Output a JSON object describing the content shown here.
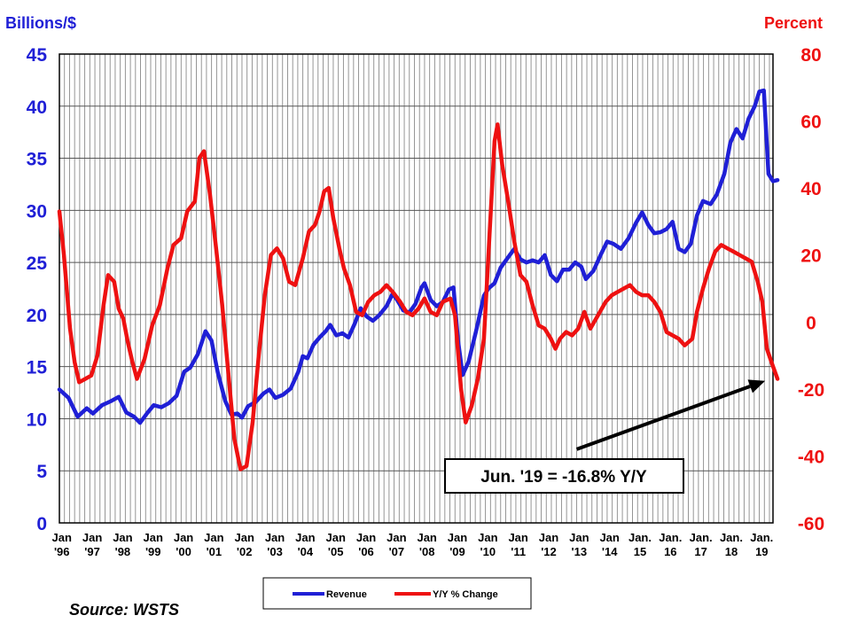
{
  "chart_data": {
    "type": "line",
    "left_axis_title": "Billions/$",
    "right_axis_title": "Percent",
    "left_ylim": [
      0,
      45
    ],
    "left_ticks": [
      "0",
      "5",
      "10",
      "15",
      "20",
      "25",
      "30",
      "35",
      "40",
      "45"
    ],
    "right_ylim": [
      -60,
      80
    ],
    "right_ticks": [
      "-60",
      "-40",
      "-20",
      "0",
      "20",
      "40",
      "60",
      "80"
    ],
    "left_color": "#1f1fd6",
    "right_color": "#ee1111",
    "x_range": [
      1996.0,
      2019.45
    ],
    "x_tick_labels": [
      [
        "Jan",
        "'96"
      ],
      [
        "Jan",
        "'97"
      ],
      [
        "Jan",
        "'98"
      ],
      [
        "Jan",
        "'99"
      ],
      [
        "Jan",
        "'00"
      ],
      [
        "Jan",
        "'01"
      ],
      [
        "Jan",
        "'02"
      ],
      [
        "Jan",
        "'03"
      ],
      [
        "Jan",
        "'04"
      ],
      [
        "Jan",
        "'05"
      ],
      [
        "Jan",
        "'06"
      ],
      [
        "Jan",
        "'07"
      ],
      [
        "Jan",
        "'08"
      ],
      [
        "Jan",
        "'09"
      ],
      [
        "Jan",
        "'10"
      ],
      [
        "Jan",
        "'11"
      ],
      [
        "Jan",
        "'12"
      ],
      [
        "Jan",
        "'13"
      ],
      [
        "Jan",
        "'14"
      ],
      [
        "Jan.",
        "15"
      ],
      [
        "Jan.",
        "16"
      ],
      [
        "Jan.",
        "17"
      ],
      [
        "Jan.",
        "18"
      ],
      [
        "Jan.",
        "19"
      ]
    ],
    "grid": true,
    "legend_position": "bottom-center",
    "series": [
      {
        "name": "Revenue",
        "axis": "left",
        "color": "#1f1fd6",
        "points": [
          [
            1996.0,
            12.8
          ],
          [
            1996.3,
            12.0
          ],
          [
            1996.6,
            10.2
          ],
          [
            1996.9,
            11.0
          ],
          [
            1997.1,
            10.5
          ],
          [
            1997.4,
            11.3
          ],
          [
            1997.7,
            11.7
          ],
          [
            1997.95,
            12.1
          ],
          [
            1998.2,
            10.6
          ],
          [
            1998.45,
            10.2
          ],
          [
            1998.65,
            9.6
          ],
          [
            1998.9,
            10.6
          ],
          [
            1999.1,
            11.3
          ],
          [
            1999.35,
            11.1
          ],
          [
            1999.6,
            11.5
          ],
          [
            1999.85,
            12.2
          ],
          [
            2000.1,
            14.5
          ],
          [
            2000.3,
            14.9
          ],
          [
            2000.55,
            16.2
          ],
          [
            2000.8,
            18.4
          ],
          [
            2001.0,
            17.5
          ],
          [
            2001.2,
            14.5
          ],
          [
            2001.45,
            11.7
          ],
          [
            2001.65,
            10.4
          ],
          [
            2001.85,
            10.5
          ],
          [
            2002.0,
            10.1
          ],
          [
            2002.2,
            11.2
          ],
          [
            2002.45,
            11.6
          ],
          [
            2002.7,
            12.4
          ],
          [
            2002.9,
            12.8
          ],
          [
            2003.1,
            12.0
          ],
          [
            2003.35,
            12.3
          ],
          [
            2003.6,
            12.9
          ],
          [
            2003.85,
            14.5
          ],
          [
            2004.0,
            16.0
          ],
          [
            2004.15,
            15.8
          ],
          [
            2004.35,
            17.1
          ],
          [
            2004.55,
            17.8
          ],
          [
            2004.75,
            18.4
          ],
          [
            2004.9,
            19.0
          ],
          [
            2005.1,
            18.0
          ],
          [
            2005.3,
            18.2
          ],
          [
            2005.5,
            17.8
          ],
          [
            2005.7,
            19.1
          ],
          [
            2005.9,
            20.6
          ],
          [
            2006.1,
            19.8
          ],
          [
            2006.3,
            19.4
          ],
          [
            2006.5,
            19.9
          ],
          [
            2006.75,
            20.8
          ],
          [
            2006.95,
            22.0
          ],
          [
            2007.1,
            21.4
          ],
          [
            2007.3,
            20.4
          ],
          [
            2007.5,
            20.2
          ],
          [
            2007.7,
            21.0
          ],
          [
            2007.9,
            22.6
          ],
          [
            2008.0,
            23.0
          ],
          [
            2008.2,
            21.4
          ],
          [
            2008.4,
            20.8
          ],
          [
            2008.6,
            21.2
          ],
          [
            2008.8,
            22.4
          ],
          [
            2008.95,
            22.6
          ],
          [
            2009.1,
            17.5
          ],
          [
            2009.25,
            14.2
          ],
          [
            2009.45,
            15.5
          ],
          [
            2009.7,
            18.5
          ],
          [
            2009.95,
            21.8
          ],
          [
            2010.1,
            22.5
          ],
          [
            2010.3,
            23.0
          ],
          [
            2010.5,
            24.5
          ],
          [
            2010.75,
            25.5
          ],
          [
            2010.95,
            26.3
          ],
          [
            2011.15,
            25.3
          ],
          [
            2011.35,
            25.0
          ],
          [
            2011.55,
            25.2
          ],
          [
            2011.75,
            25.0
          ],
          [
            2011.95,
            25.7
          ],
          [
            2012.15,
            23.8
          ],
          [
            2012.35,
            23.2
          ],
          [
            2012.55,
            24.3
          ],
          [
            2012.75,
            24.3
          ],
          [
            2012.95,
            25.0
          ],
          [
            2013.15,
            24.6
          ],
          [
            2013.3,
            23.4
          ],
          [
            2013.55,
            24.2
          ],
          [
            2013.8,
            25.8
          ],
          [
            2014.0,
            27.0
          ],
          [
            2014.2,
            26.8
          ],
          [
            2014.45,
            26.3
          ],
          [
            2014.7,
            27.3
          ],
          [
            2014.95,
            28.8
          ],
          [
            2015.15,
            29.8
          ],
          [
            2015.35,
            28.6
          ],
          [
            2015.55,
            27.8
          ],
          [
            2015.75,
            27.9
          ],
          [
            2015.95,
            28.2
          ],
          [
            2016.15,
            28.9
          ],
          [
            2016.35,
            26.3
          ],
          [
            2016.55,
            26.0
          ],
          [
            2016.75,
            26.8
          ],
          [
            2016.95,
            29.5
          ],
          [
            2017.15,
            30.9
          ],
          [
            2017.4,
            30.6
          ],
          [
            2017.6,
            31.5
          ],
          [
            2017.85,
            33.5
          ],
          [
            2018.05,
            36.5
          ],
          [
            2018.25,
            37.8
          ],
          [
            2018.45,
            36.9
          ],
          [
            2018.65,
            38.8
          ],
          [
            2018.85,
            40.0
          ],
          [
            2019.0,
            41.4
          ],
          [
            2019.15,
            41.5
          ],
          [
            2019.3,
            33.5
          ],
          [
            2019.45,
            32.8
          ],
          [
            2019.6,
            32.9
          ]
        ]
      },
      {
        "name": "Y/Y % Change",
        "axis": "right",
        "color": "#ee1111",
        "points": [
          [
            1996.0,
            33
          ],
          [
            1996.15,
            20
          ],
          [
            1996.35,
            -2
          ],
          [
            1996.5,
            -12
          ],
          [
            1996.65,
            -18
          ],
          [
            1996.85,
            -17
          ],
          [
            1997.05,
            -16
          ],
          [
            1997.25,
            -10
          ],
          [
            1997.45,
            5
          ],
          [
            1997.6,
            14
          ],
          [
            1997.8,
            12
          ],
          [
            1997.95,
            4
          ],
          [
            1998.1,
            1
          ],
          [
            1998.25,
            -6
          ],
          [
            1998.4,
            -12
          ],
          [
            1998.55,
            -17
          ],
          [
            1998.8,
            -11
          ],
          [
            1999.05,
            -1
          ],
          [
            1999.3,
            5
          ],
          [
            1999.55,
            16
          ],
          [
            1999.75,
            23
          ],
          [
            2000.0,
            25
          ],
          [
            2000.2,
            33
          ],
          [
            2000.45,
            36
          ],
          [
            2000.6,
            49
          ],
          [
            2000.75,
            51
          ],
          [
            2000.95,
            38
          ],
          [
            2001.15,
            22
          ],
          [
            2001.35,
            5
          ],
          [
            2001.55,
            -15
          ],
          [
            2001.75,
            -35
          ],
          [
            2001.95,
            -44
          ],
          [
            2002.15,
            -43
          ],
          [
            2002.35,
            -30
          ],
          [
            2002.55,
            -10
          ],
          [
            2002.75,
            8
          ],
          [
            2002.95,
            20
          ],
          [
            2003.15,
            22
          ],
          [
            2003.35,
            19
          ],
          [
            2003.55,
            12
          ],
          [
            2003.75,
            11
          ],
          [
            2004.0,
            19
          ],
          [
            2004.2,
            27
          ],
          [
            2004.4,
            29
          ],
          [
            2004.55,
            33
          ],
          [
            2004.7,
            39
          ],
          [
            2004.85,
            40
          ],
          [
            2005.0,
            31
          ],
          [
            2005.2,
            22
          ],
          [
            2005.35,
            16
          ],
          [
            2005.55,
            11
          ],
          [
            2005.75,
            3
          ],
          [
            2005.95,
            2
          ],
          [
            2006.15,
            6
          ],
          [
            2006.35,
            8
          ],
          [
            2006.55,
            9
          ],
          [
            2006.75,
            11
          ],
          [
            2006.95,
            9
          ],
          [
            2007.2,
            6
          ],
          [
            2007.4,
            3
          ],
          [
            2007.6,
            2
          ],
          [
            2007.8,
            4
          ],
          [
            2008.0,
            7
          ],
          [
            2008.2,
            3
          ],
          [
            2008.4,
            2
          ],
          [
            2008.6,
            6
          ],
          [
            2008.85,
            7
          ],
          [
            2009.0,
            2
          ],
          [
            2009.2,
            -20
          ],
          [
            2009.35,
            -30
          ],
          [
            2009.55,
            -25
          ],
          [
            2009.75,
            -17
          ],
          [
            2009.95,
            -5
          ],
          [
            2010.1,
            20
          ],
          [
            2010.3,
            54
          ],
          [
            2010.4,
            59
          ],
          [
            2010.55,
            47
          ],
          [
            2010.75,
            36
          ],
          [
            2010.95,
            24
          ],
          [
            2011.15,
            14
          ],
          [
            2011.35,
            12
          ],
          [
            2011.55,
            5
          ],
          [
            2011.75,
            -1
          ],
          [
            2011.95,
            -2
          ],
          [
            2012.15,
            -5
          ],
          [
            2012.3,
            -8
          ],
          [
            2012.45,
            -5
          ],
          [
            2012.65,
            -3
          ],
          [
            2012.85,
            -4
          ],
          [
            2013.05,
            -2
          ],
          [
            2013.25,
            3
          ],
          [
            2013.45,
            -2
          ],
          [
            2013.7,
            2
          ],
          [
            2013.95,
            6
          ],
          [
            2014.15,
            8
          ],
          [
            2014.35,
            9
          ],
          [
            2014.55,
            10
          ],
          [
            2014.75,
            11
          ],
          [
            2014.95,
            9
          ],
          [
            2015.15,
            8
          ],
          [
            2015.35,
            8
          ],
          [
            2015.55,
            6
          ],
          [
            2015.75,
            3
          ],
          [
            2015.95,
            -3
          ],
          [
            2016.15,
            -4
          ],
          [
            2016.35,
            -5
          ],
          [
            2016.55,
            -7
          ],
          [
            2016.8,
            -5
          ],
          [
            2016.95,
            3
          ],
          [
            2017.15,
            10
          ],
          [
            2017.35,
            16
          ],
          [
            2017.55,
            21
          ],
          [
            2017.75,
            23
          ],
          [
            2017.95,
            22
          ],
          [
            2018.15,
            21
          ],
          [
            2018.35,
            20
          ],
          [
            2018.55,
            19
          ],
          [
            2018.75,
            18
          ],
          [
            2018.95,
            12
          ],
          [
            2019.1,
            6
          ],
          [
            2019.25,
            -8
          ],
          [
            2019.4,
            -12
          ],
          [
            2019.6,
            -17
          ]
        ]
      }
    ],
    "annotation": {
      "text": "Jun. '19 = -16.8% Y/Y",
      "target": [
        2019.6,
        -16.8
      ],
      "arrow_from": [
        2013.0,
        -38.0
      ]
    }
  },
  "source_text": "Source: WSTS"
}
